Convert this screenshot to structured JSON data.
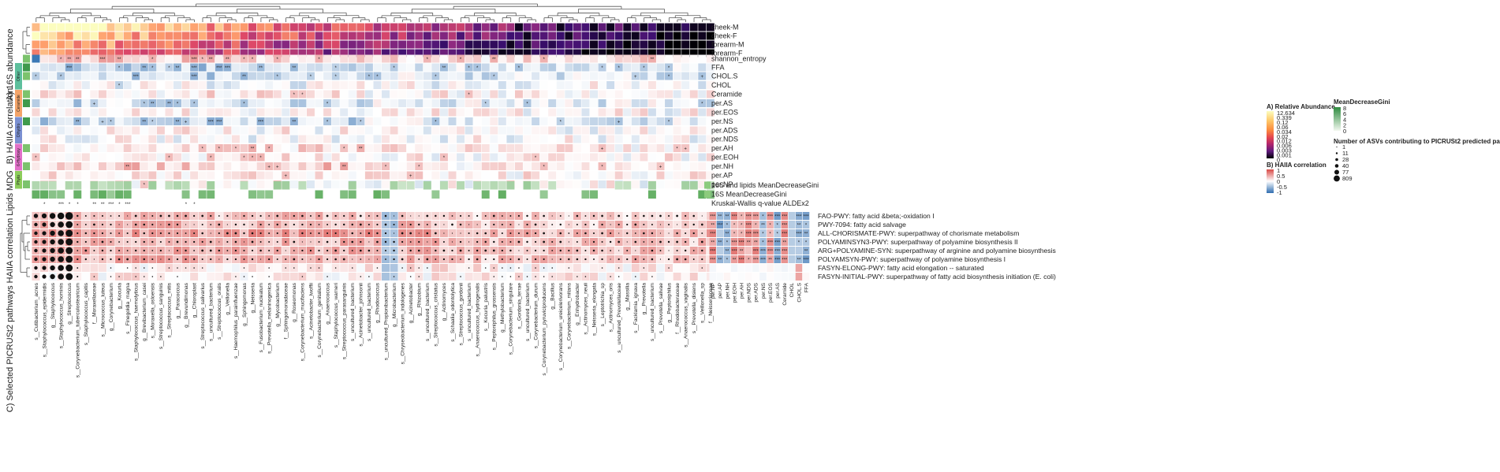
{
  "section_titles": {
    "a": "A) 16S abundance",
    "b": "B) HAIIA correlation",
    "lipids": "Lipids MDG",
    "c": "C) Selected PICRUSt2 pathways HAIIA correlation"
  },
  "legends": {
    "rel_abund": {
      "title": "A) Relative Abundance",
      "values": [
        "12.634",
        "0.339",
        "0.12",
        "0.06",
        "0.034",
        "0.02",
        "0.012",
        "0.006",
        "0.003",
        "0.001",
        "0"
      ]
    },
    "gini": {
      "title": "MeanDecreaseGini",
      "values": [
        "8",
        "6",
        "4",
        "2",
        "0"
      ]
    },
    "asv": {
      "title": "Number of ASVs contributing to PICRUSt2 predicted pathways",
      "values": [
        "1",
        "11",
        "28",
        "40",
        "77",
        "809"
      ]
    },
    "haiia": {
      "title": "B) HAIIA correlation",
      "values": [
        "1",
        "0.5",
        "0",
        "-0.5",
        "-1"
      ]
    }
  },
  "lipid_groups": [
    "Other",
    "Ceramide",
    "Dihydro",
    "6-Hydroxy",
    "Phyto"
  ],
  "chart_data": [
    {
      "type": "heatmap",
      "title": "A) 16S abundance",
      "rows": [
        "cheek-M",
        "cheek-F",
        "forearm-M",
        "forearm-F"
      ]
    },
    {
      "type": "heatmap",
      "title": "B) HAIIA correlation",
      "rows": [
        "shannon_entropy",
        "FFA",
        "CHOL.S",
        "CHOL",
        "Ceramide",
        "per.AS",
        "per.EOS",
        "per.NS",
        "per.ADS",
        "per.NDS",
        "per.AH",
        "per.EOH",
        "per.NH",
        "per.AP",
        "per.NP"
      ],
      "color_scale": {
        "min": -1,
        "max": 1
      }
    },
    {
      "type": "heatmap",
      "title": "Lipids MDG",
      "rows": [
        "16S and lipids MeanDecreaseGini",
        "16S MeanDecreaseGini",
        "Kruskal-Wallis q-value ALDEx2"
      ]
    },
    {
      "type": "heatmap",
      "title": "C) Selected PICRUSt2 pathways HAIIA correlation",
      "rows": [
        "FAO-PWY: fatty acid &beta;-oxidation I",
        "PWY-7094: fatty acid salvage",
        "ALL-CHORISMATE-PWY: superpathway of chorismate metabolism",
        "POLYAMINSYN3-PWY: superpathway of polyamine biosynthesis II",
        "ARG+POLYAMINE-SYN: superpathway of arginine and polyamine biosynthesis",
        "POLYAMSYN-PWY: superpathway of polyamine biosynthesis I",
        "FASYN-ELONG-PWY: fatty acid elongation -- saturated",
        "FASYN-INITIAL-PWY: superpathway of fatty acid biosynthesis initiation (E. coli)"
      ],
      "taxa": [
        "s__Cutibacterium_acnes",
        "s__Staphylococcus_epidermidis",
        "g__Staphylococcus",
        "s__Staphylococcus_hominis",
        "g__Streptococcus",
        "s__Corynebacterium_tuberculostearicum",
        "s__Staphylococcus_capitis",
        "f__Moraxellaceae",
        "s__Micrococcus_luteus",
        "g__Corynebacterium",
        "g__Kocuria",
        "s__Finegoldia_magna",
        "s__Staphylococcus_haemolyticus",
        "g__Brevibacterium_casei",
        "s__Moraxella_osloensis",
        "s__Streptococcus_sanguinis",
        "s__Streptococcus_mitis",
        "g__Paracoccus",
        "g__Brevundimonas",
        "g__Chloroplast",
        "s__Streptococcus_salivarius",
        "s__uncultured_bacterium",
        "s__Streptococcus_oralis",
        "g__Veillonella",
        "s__Haemophilus_parainfluenzae",
        "g__Sphingomonas",
        "g__Neisseria",
        "s__Fusobacterium_nucleatum",
        "s__Prevotella_melaninogenica",
        "g__Mycobacterium",
        "f__Sphingomonadaceae",
        "g__Roseomonas",
        "s__Corynebacterium_mucifaciens",
        "s__Acinetobacter_lwoffii",
        "s__Corynebacterium_genitalium",
        "g__Anaerococcus",
        "s__Staphylococcus_warneri",
        "s__Streptococcus_parasanguinis",
        "s__uncultured_bacterium",
        "s__Acinetobacter_johnsonii",
        "s__uncultured_bacterium",
        "g__Rhodococcus",
        "s__uncultured_Propionibacterium",
        "g__Microbacterium",
        "s__Chryseobacterium_indologenes",
        "g__Acinetobacter",
        "g__Rhizobium",
        "s__uncultured_bacterium",
        "s__Streptococcus_cristatus",
        "g__Actinomyces",
        "s__Schaalia_odontolytica",
        "s__Streptococcus_gordonii",
        "s__uncultured_bacterium",
        "s__Anaerococcus_hydrogenalis",
        "s__Kocuria_palustris",
        "s__Peptoniphilus_grossensis",
        "g__Methylobacterium",
        "s__Corynebacterium_singulare",
        "s__Gordonia_terrae",
        "s__uncultured_bacterium",
        "s__Corynebacterium_durum",
        "s__Corynebacterium_pyruviciproducens",
        "g__Bacillus",
        "s__Corynebacterium_ureicelerivorans",
        "s__Corynebacterium_mitans",
        "g__Enhydrobacter",
        "s__Actinomyces_neuii",
        "s__Neisseria_elongata",
        "s__Leptotrichia_sp",
        "s__Actinomyces_oris",
        "s__uncultured_Prevotellaceae",
        "g__Massilia",
        "s__Facklamia_ignava",
        "g__Prevotella",
        "s__uncultured_bacterium",
        "s__Prevotella_salivae",
        "g__Peptoniphilus",
        "f__Rhodobacteraceae",
        "s__Anaerococcus_vaginalis",
        "s__Prevotella_disiens",
        "s__Veillonella_sp",
        "f__Neisseriaceae"
      ],
      "lipid_columns": [
        "per.NP",
        "per.AP",
        "per.NH",
        "per.EOH",
        "per.AH",
        "per.NDS",
        "per.ADS",
        "per.NS",
        "per.EOS",
        "per.AS",
        "Ceramide",
        "CHOL",
        "CHOL.S",
        "FFA"
      ],
      "color_scale": {
        "min": -1,
        "max": 1
      }
    }
  ]
}
